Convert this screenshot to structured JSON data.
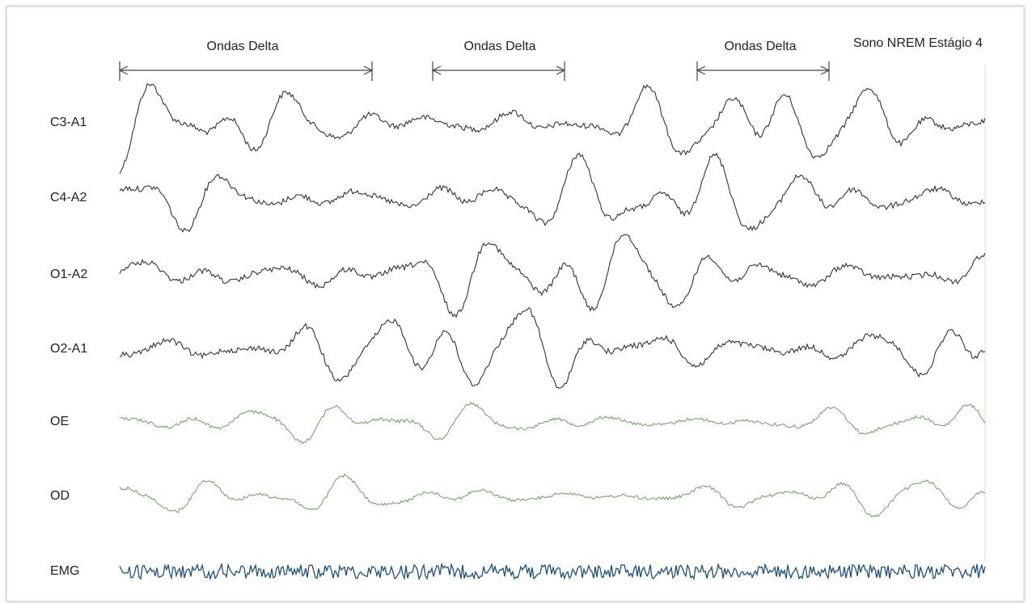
{
  "title": "Sono NREM Estágio 4",
  "annotations": [
    "Ondas Delta",
    "Ondas Delta",
    "Ondas Delta"
  ],
  "channels": [
    "C3-A1",
    "C4-A2",
    "O1-A2",
    "O2-A1",
    "OE",
    "OD",
    "EMG"
  ]
}
